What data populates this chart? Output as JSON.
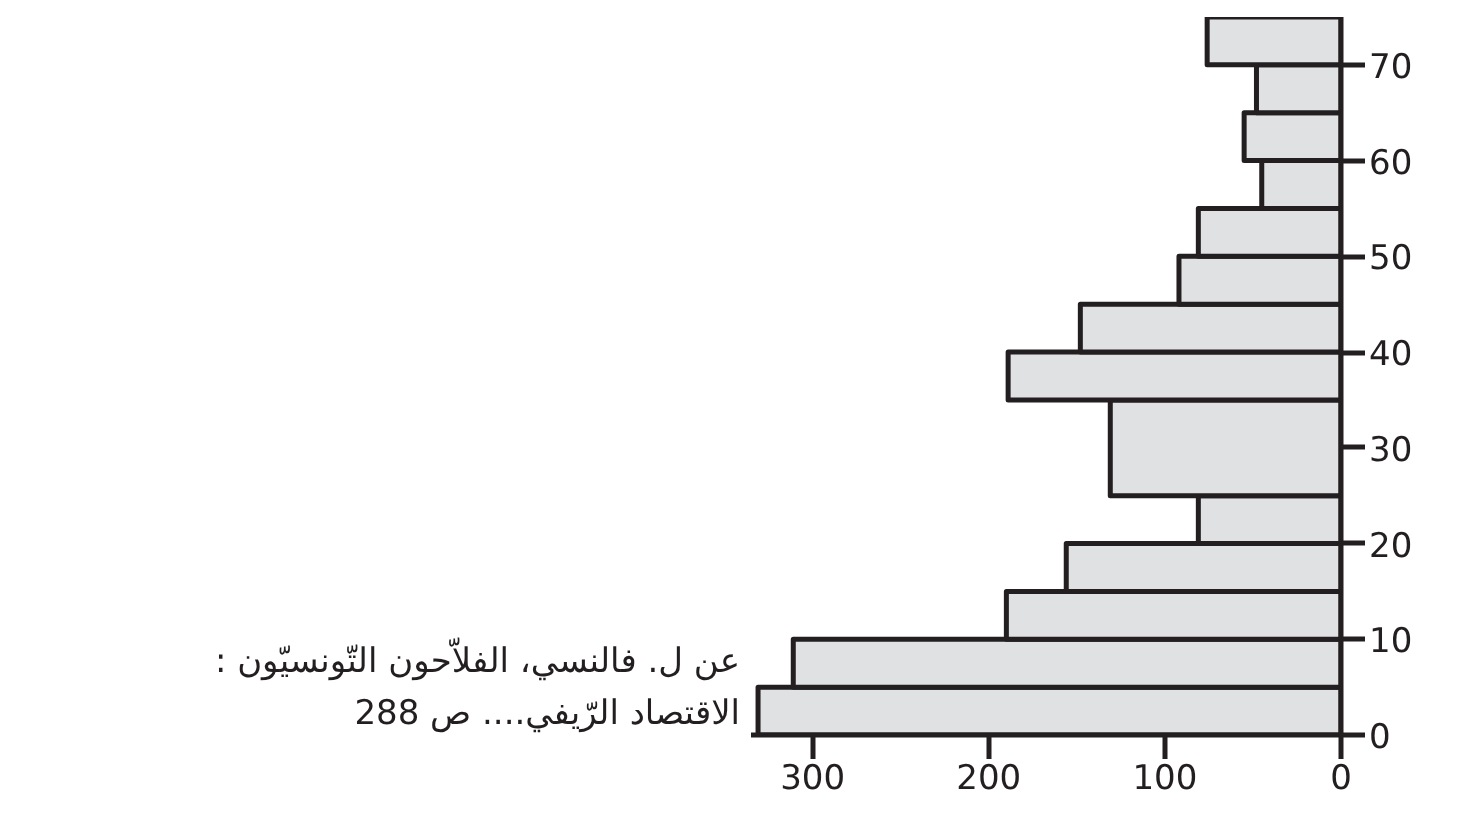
{
  "chart_data": {
    "type": "histogram",
    "orientation": "horizontal",
    "bins": [
      0,
      5,
      10,
      15,
      20,
      25,
      35,
      40,
      45,
      50,
      55,
      60,
      65,
      70,
      75
    ],
    "values": [
      331,
      311,
      190,
      156,
      81,
      131,
      189,
      148,
      92,
      81,
      45,
      55,
      48,
      76
    ],
    "color": "#e0e1e3",
    "xlim": [
      335,
      0
    ],
    "xticks": [
      300,
      200,
      100,
      0
    ],
    "ylim": [
      0,
      75
    ],
    "yticks": [
      0,
      10,
      20,
      30,
      40,
      50,
      60,
      70
    ],
    "grid": false,
    "annotations": [
      "عن ل. فالنسي، الفلاّحون التّونسيّون :",
      "الاقتصاد الرّيفي.... ص 288"
    ]
  }
}
